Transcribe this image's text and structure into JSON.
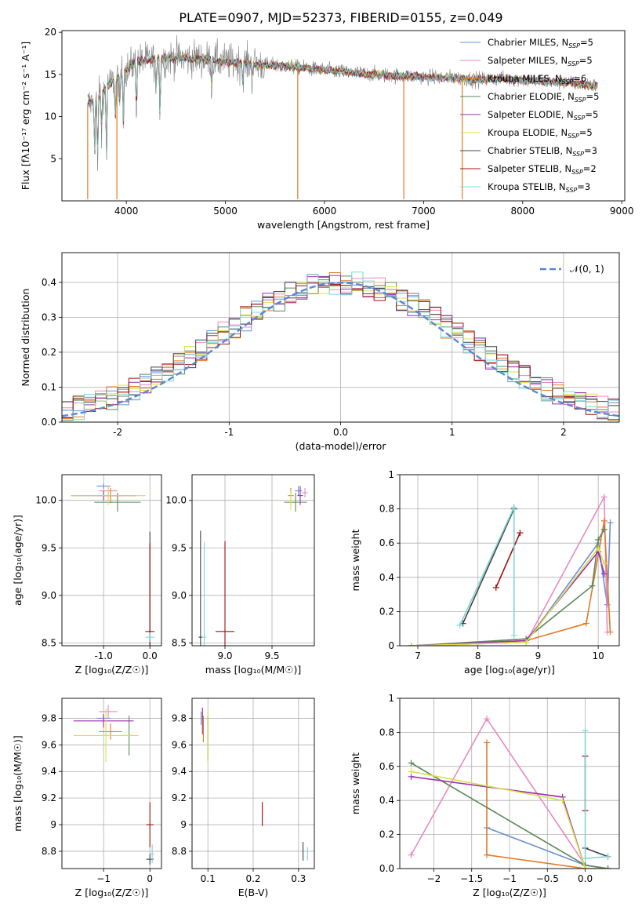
{
  "figure_title": "PLATE=0907, MJD=52373, FIBERID=0155, z=0.049",
  "colors": {
    "chabrier_miles": "#6b8fd6",
    "salpeter_miles": "#e78ac3",
    "kroupa_miles": "#e07b28",
    "chabrier_elodie": "#5b8a5b",
    "salpeter_elodie": "#9b2fae",
    "kroupa_elodie": "#d8e04a",
    "chabrier_stelib": "#444444",
    "salpeter_stelib": "#a01010",
    "kroupa_stelib": "#7fd6d6",
    "data": "#808080",
    "normal": "#5a86d6"
  },
  "legend_spectrum": [
    {
      "label": "Chabrier MILES, N",
      "sub": "SSP",
      "suffix": "=5",
      "color": "#6b8fd6"
    },
    {
      "label": "Salpeter MILES, N",
      "sub": "SSP",
      "suffix": "=5",
      "color": "#e78ac3"
    },
    {
      "label": "Kroupa MILES, N",
      "sub": "SSP",
      "suffix": "=6",
      "color": "#e07b28"
    },
    {
      "label": "Chabrier ELODIE, N",
      "sub": "SSP",
      "suffix": "=5",
      "color": "#5b8a5b"
    },
    {
      "label": "Salpeter ELODIE, N",
      "sub": "SSP",
      "suffix": "=5",
      "color": "#9b2fae"
    },
    {
      "label": "Kroupa ELODIE, N",
      "sub": "SSP",
      "suffix": "=5",
      "color": "#d8e04a"
    },
    {
      "label": "Chabrier STELIB, N",
      "sub": "SSP",
      "suffix": "=3",
      "color": "#444444"
    },
    {
      "label": "Salpeter STELIB, N",
      "sub": "SSP",
      "suffix": "=2",
      "color": "#a01010"
    },
    {
      "label": "Kroupa STELIB, N",
      "sub": "SSP",
      "suffix": "=3",
      "color": "#7fd6d6"
    }
  ],
  "chart_data": [
    {
      "id": "spectrum",
      "type": "line",
      "xlabel": "wavelength [Angstrom, rest frame]",
      "ylabel": "Flux [fλ10⁻¹⁷ erg cm⁻² s⁻¹ A⁻¹]",
      "xlim": [
        3350,
        9030
      ],
      "ylim": [
        0,
        20.2
      ],
      "xticks": [
        4000,
        5000,
        6000,
        7000,
        8000,
        9000
      ],
      "yticks": [
        5,
        10,
        15,
        20
      ],
      "x_range": [
        3610,
        8760
      ],
      "continuum": [
        [
          3610,
          11.5
        ],
        [
          3700,
          12.0
        ],
        [
          3800,
          13.5
        ],
        [
          3950,
          15.0
        ],
        [
          4100,
          16.5
        ],
        [
          4300,
          16.8
        ],
        [
          4500,
          17.0
        ],
        [
          4800,
          16.8
        ],
        [
          5000,
          16.5
        ],
        [
          5300,
          16.2
        ],
        [
          5600,
          16.0
        ],
        [
          6000,
          15.5
        ],
        [
          6500,
          15.0
        ],
        [
          7000,
          14.7
        ],
        [
          7300,
          14.6
        ],
        [
          7500,
          14.4
        ],
        [
          7800,
          14.5
        ],
        [
          8200,
          14.2
        ],
        [
          8500,
          14.0
        ],
        [
          8760,
          13.6
        ]
      ],
      "absorption_lines": [
        [
          3680,
          4.5
        ],
        [
          3710,
          3.0
        ],
        [
          3750,
          7.5
        ],
        [
          3800,
          4.0
        ],
        [
          3889,
          9.5
        ],
        [
          3934,
          10.5
        ],
        [
          3970,
          9.0
        ],
        [
          4102,
          9.5
        ],
        [
          4300,
          12.0
        ],
        [
          4340,
          9.0
        ],
        [
          4861,
          12.8
        ],
        [
          5175,
          13.5
        ],
        [
          5270,
          14.2
        ]
      ],
      "spikes": [
        [
          3610,
          0.2
        ],
        [
          3905,
          0.2
        ],
        [
          5730,
          0.2
        ],
        [
          6800,
          0.2
        ],
        [
          7390,
          0.2
        ]
      ],
      "noise_amplitude": 1.2
    },
    {
      "id": "residual_histogram",
      "type": "histogram",
      "xlabel": "(data-model)/error",
      "ylabel": "Normed distribution",
      "xlim": [
        -2.5,
        2.5
      ],
      "ylim": [
        0,
        0.485
      ],
      "xticks": [
        -2,
        -1,
        0,
        1,
        2
      ],
      "yticks": [
        0.0,
        0.1,
        0.2,
        0.3,
        0.4
      ],
      "bin_width": 0.1,
      "legend": "𝒩(0, 1)"
    },
    {
      "id": "age_vs_Z",
      "type": "errorbar",
      "xlabel": "Z [log₁₀(Z/Z☉)]",
      "ylabel": "age  [log₁₀(age/yr)]",
      "xlim": [
        -1.9,
        0.25
      ],
      "ylim": [
        8.47,
        10.27
      ],
      "xticks": [
        -1,
        0
      ],
      "yticks": [
        8.5,
        9.0,
        9.5,
        10.0
      ],
      "points": [
        {
          "c": "#6b8fd6",
          "x": -1.0,
          "y": 10.15,
          "xe": 0.15,
          "ye": 0.03
        },
        {
          "c": "#e78ac3",
          "x": -0.9,
          "y": 10.1,
          "xe": 0.2,
          "ye": 0.05
        },
        {
          "c": "#e07b28",
          "x": -0.85,
          "y": 10.05,
          "xe": 0.25,
          "ye": 0.08
        },
        {
          "c": "#5b8a5b",
          "x": -0.7,
          "y": 9.98,
          "xe": 0.5,
          "ye": 0.1
        },
        {
          "c": "#9b2fae",
          "x": -1.0,
          "y": 10.05,
          "xe": 0.7,
          "ye": 0.05
        },
        {
          "c": "#d8e04a",
          "x": -0.9,
          "y": 10.05,
          "xe": 0.8,
          "ye": 0.1
        },
        {
          "c": "#444444",
          "x": 0.0,
          "y": 8.62,
          "xe": 0.02,
          "ye": 1.05
        },
        {
          "c": "#a01010",
          "x": 0.0,
          "y": 8.62,
          "xe": 0.1,
          "ye": 0.93
        },
        {
          "c": "#7fd6d6",
          "x": 0.0,
          "y": 8.56,
          "xe": 0.1,
          "ye": 0.05
        }
      ]
    },
    {
      "id": "age_vs_mass",
      "type": "errorbar",
      "xlabel": "mass [log₁₀(M/M☉)]",
      "ylabel": "",
      "xlim": [
        8.65,
        9.95
      ],
      "ylim": [
        8.47,
        10.27
      ],
      "xticks": [
        9.0,
        9.5
      ],
      "yticks": [
        8.5,
        9.0,
        9.5,
        10.0
      ],
      "points": [
        {
          "c": "#6b8fd6",
          "x": 9.78,
          "y": 10.1,
          "xe": 0.04,
          "ye": 0.05
        },
        {
          "c": "#e78ac3",
          "x": 9.85,
          "y": 10.08,
          "xe": 0.03,
          "ye": 0.05
        },
        {
          "c": "#e07b28",
          "x": 9.7,
          "y": 10.05,
          "xe": 0.03,
          "ye": 0.08
        },
        {
          "c": "#5b8a5b",
          "x": 9.75,
          "y": 9.98,
          "xe": 0.12,
          "ye": 0.1
        },
        {
          "c": "#9b2fae",
          "x": 9.8,
          "y": 10.05,
          "xe": 0.03,
          "ye": 0.1
        },
        {
          "c": "#d8e04a",
          "x": 9.7,
          "y": 10.0,
          "xe": 0.03,
          "ye": 0.1
        },
        {
          "c": "#444444",
          "x": 8.74,
          "y": 8.56,
          "xe": 0.02,
          "ye": 1.12
        },
        {
          "c": "#a01010",
          "x": 9.0,
          "y": 8.62,
          "xe": 0.1,
          "ye": 0.95
        },
        {
          "c": "#7fd6d6",
          "x": 8.78,
          "y": 8.56,
          "xe": 0.02,
          "ye": 1.0
        }
      ]
    },
    {
      "id": "mass_weight_vs_age",
      "type": "line",
      "xlabel": "age  [log₁₀(age/yr)]",
      "ylabel": "mass weight",
      "xlim": [
        6.7,
        10.35
      ],
      "ylim": [
        0.0,
        1.0
      ],
      "xticks": [
        7,
        8,
        9,
        10
      ],
      "yticks": [
        0.0,
        0.2,
        0.4,
        0.6,
        0.8,
        1.0
      ],
      "series": [
        {
          "c": "#444444",
          "pts": [
            [
              7.75,
              0.13
            ],
            [
              8.6,
              0.8
            ]
          ]
        },
        {
          "c": "#a01010",
          "pts": [
            [
              8.3,
              0.34
            ],
            [
              8.7,
              0.66
            ]
          ]
        },
        {
          "c": "#7fd6d6",
          "pts": [
            [
              7.7,
              0.12
            ],
            [
              8.6,
              0.81
            ],
            [
              8.6,
              0.06
            ]
          ]
        },
        {
          "c": "#6b8fd6",
          "pts": [
            [
              6.9,
              0.0
            ],
            [
              8.8,
              0.02
            ],
            [
              10.0,
              0.6
            ],
            [
              10.15,
              0.24
            ],
            [
              10.2,
              0.72
            ]
          ]
        },
        {
          "c": "#e78ac3",
          "pts": [
            [
              6.9,
              0.0
            ],
            [
              8.8,
              0.02
            ],
            [
              10.1,
              0.87
            ],
            [
              10.15,
              0.08
            ]
          ]
        },
        {
          "c": "#e07b28",
          "pts": [
            [
              6.9,
              0.0
            ],
            [
              8.8,
              0.03
            ],
            [
              9.8,
              0.13
            ],
            [
              10.1,
              0.73
            ],
            [
              10.2,
              0.08
            ]
          ]
        },
        {
          "c": "#5b8a5b",
          "pts": [
            [
              6.9,
              0.0
            ],
            [
              8.8,
              0.04
            ],
            [
              9.9,
              0.35
            ],
            [
              10.0,
              0.62
            ],
            [
              10.1,
              0.68
            ]
          ]
        },
        {
          "c": "#9b2fae",
          "pts": [
            [
              6.9,
              0.0
            ],
            [
              8.8,
              0.03
            ],
            [
              10.0,
              0.55
            ],
            [
              10.1,
              0.42
            ]
          ]
        },
        {
          "c": "#d8e04a",
          "pts": [
            [
              6.9,
              0.0
            ],
            [
              8.8,
              0.02
            ],
            [
              10.0,
              0.57
            ],
            [
              10.1,
              0.48
            ]
          ]
        }
      ]
    },
    {
      "id": "mass_vs_Z",
      "type": "errorbar",
      "xlabel": "Z [log₁₀(Z/Z☉)]",
      "ylabel": "mass [log₁₀(M/M☉)]",
      "xlim": [
        -1.9,
        0.25
      ],
      "ylim": [
        8.67,
        9.95
      ],
      "xticks": [
        -1,
        0
      ],
      "yticks": [
        8.8,
        9.0,
        9.2,
        9.4,
        9.6,
        9.8
      ],
      "points": [
        {
          "c": "#6b8fd6",
          "x": -1.0,
          "y": 9.8,
          "xe": 0.15,
          "ye": 0.03
        },
        {
          "c": "#e78ac3",
          "x": -0.9,
          "y": 9.85,
          "xe": 0.2,
          "ye": 0.05
        },
        {
          "c": "#e07b28",
          "x": -0.85,
          "y": 9.7,
          "xe": 0.25,
          "ye": 0.06
        },
        {
          "c": "#5b8a5b",
          "x": -0.45,
          "y": 9.67,
          "xe": 0.1,
          "ye": 0.15
        },
        {
          "c": "#9b2fae",
          "x": -1.0,
          "y": 9.78,
          "xe": 0.65,
          "ye": 0.05
        },
        {
          "c": "#d8e04a",
          "x": -0.95,
          "y": 9.67,
          "xe": 0.7,
          "ye": 0.2
        },
        {
          "c": "#444444",
          "x": 0.0,
          "y": 8.74,
          "xe": 0.08,
          "ye": 0.04
        },
        {
          "c": "#a01010",
          "x": 0.0,
          "y": 9.0,
          "xe": 0.08,
          "ye": 0.17
        },
        {
          "c": "#7fd6d6",
          "x": 0.05,
          "y": 8.78,
          "xe": 0.05,
          "ye": 0.07
        }
      ]
    },
    {
      "id": "mass_vs_EBV",
      "type": "errorbar",
      "xlabel": "E(B-V)",
      "ylabel": "",
      "xlim": [
        0.065,
        0.335
      ],
      "ylim": [
        8.67,
        9.95
      ],
      "xticks": [
        0.1,
        0.2,
        0.3
      ],
      "yticks": [
        8.8,
        9.0,
        9.2,
        9.4,
        9.6,
        9.8
      ],
      "points": [
        {
          "c": "#6b8fd6",
          "x": 0.085,
          "y": 9.8,
          "xe": 0.0,
          "ye": 0.05
        },
        {
          "c": "#e78ac3",
          "x": 0.088,
          "y": 9.83,
          "xe": 0.0,
          "ye": 0.05
        },
        {
          "c": "#e07b28",
          "x": 0.09,
          "y": 9.72,
          "xe": 0.0,
          "ye": 0.1
        },
        {
          "c": "#5b8a5b",
          "x": 0.1,
          "y": 9.65,
          "xe": 0.0,
          "ye": 0.17
        },
        {
          "c": "#9b2fae",
          "x": 0.088,
          "y": 9.78,
          "xe": 0.0,
          "ye": 0.1
        },
        {
          "c": "#d8e04a",
          "x": 0.1,
          "y": 9.67,
          "xe": 0.0,
          "ye": 0.2
        },
        {
          "c": "#444444",
          "x": 0.31,
          "y": 8.8,
          "xe": 0.0,
          "ye": 0.07
        },
        {
          "c": "#a01010",
          "x": 0.22,
          "y": 9.08,
          "xe": 0.0,
          "ye": 0.09
        },
        {
          "c": "#7fd6d6",
          "x": 0.32,
          "y": 8.78,
          "xe": 0.0,
          "ye": 0.05
        }
      ]
    },
    {
      "id": "mass_weight_vs_Z",
      "type": "line",
      "xlabel": "Z [log₁₀(Z/Z☉)]",
      "ylabel": "mass weight",
      "xlim": [
        -2.45,
        0.45
      ],
      "ylim": [
        0.0,
        1.0
      ],
      "xticks": [
        -2.0,
        -1.5,
        -1.0,
        -0.5,
        0.0
      ],
      "yticks": [
        0.0,
        0.2,
        0.4,
        0.6,
        0.8,
        1.0
      ],
      "series": [
        {
          "c": "#6b8fd6",
          "pts": [
            [
              -1.3,
              0.24
            ],
            [
              0.0,
              0.02
            ],
            [
              0.3,
              0.0
            ]
          ]
        },
        {
          "c": "#e78ac3",
          "pts": [
            [
              -2.3,
              0.08
            ],
            [
              -1.3,
              0.88
            ],
            [
              0.0,
              0.02
            ],
            [
              0.3,
              0.0
            ]
          ]
        },
        {
          "c": "#e07b28",
          "pts": [
            [
              -1.3,
              0.74
            ],
            [
              -1.3,
              0.08
            ],
            [
              0.0,
              0.0
            ],
            [
              0.3,
              0.0
            ]
          ]
        },
        {
          "c": "#5b8a5b",
          "pts": [
            [
              -2.3,
              0.62
            ],
            [
              0.0,
              0.02
            ],
            [
              0.3,
              0.0
            ]
          ]
        },
        {
          "c": "#9b2fae",
          "pts": [
            [
              -2.3,
              0.54
            ],
            [
              -0.3,
              0.42
            ],
            [
              0.0,
              0.0
            ]
          ]
        },
        {
          "c": "#d8e04a",
          "pts": [
            [
              -2.3,
              0.57
            ],
            [
              -0.3,
              0.4
            ],
            [
              0.0,
              0.0
            ]
          ]
        },
        {
          "c": "#444444",
          "pts": [
            [
              0.0,
              0.12
            ],
            [
              0.3,
              0.07
            ]
          ]
        },
        {
          "c": "#a01010",
          "pts": [
            [
              0.0,
              0.66
            ],
            [
              0.0,
              0.34
            ]
          ]
        },
        {
          "c": "#7fd6d6",
          "pts": [
            [
              0.0,
              0.81
            ],
            [
              0.0,
              0.06
            ],
            [
              0.3,
              0.07
            ]
          ]
        }
      ]
    }
  ]
}
